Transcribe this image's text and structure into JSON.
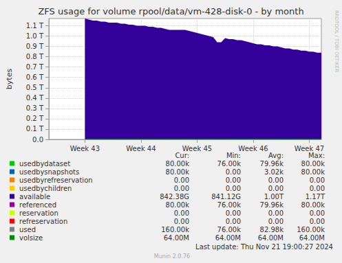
{
  "chart_data": {
    "type": "area",
    "title": "ZFS usage for volume rpool/data/vm-428-disk-0 - by month",
    "y_label": "bytes",
    "watermark": "RRDTOOL / TOBI OETIKER",
    "last_update": "Last update: Thu Nov 21 19:00:27 2024",
    "footer": "Munin 2.0.76",
    "grid": true,
    "ylim": [
      0,
      1.17
    ],
    "yticks": [
      {
        "value": 0,
        "label": "0.0"
      },
      {
        "value": 0.1,
        "label": "0.1 T"
      },
      {
        "value": 0.2,
        "label": "0.2 T"
      },
      {
        "value": 0.3,
        "label": "0.3 T"
      },
      {
        "value": 0.4,
        "label": "0.4 T"
      },
      {
        "value": 0.5,
        "label": "0.5 T"
      },
      {
        "value": 0.6,
        "label": "0.6 T"
      },
      {
        "value": 0.7,
        "label": "0.7 T"
      },
      {
        "value": 0.8,
        "label": "0.8 T"
      },
      {
        "value": 0.9,
        "label": "0.9 T"
      },
      {
        "value": 1.0,
        "label": "1.0 T"
      },
      {
        "value": 1.1,
        "label": "1.1 T"
      }
    ],
    "categories": [
      null,
      null,
      null,
      null,
      null,
      null,
      null,
      null,
      null,
      "Week 43",
      null,
      null,
      null,
      null,
      null,
      null,
      null,
      null,
      null,
      null,
      null,
      null,
      null,
      "Week 44",
      null,
      null,
      null,
      null,
      null,
      null,
      null,
      null,
      null,
      null,
      null,
      null,
      null,
      "Week 45",
      null,
      null,
      null,
      null,
      null,
      null,
      null,
      null,
      null,
      null,
      null,
      null,
      null,
      "Week 46",
      null,
      null,
      null,
      null,
      null,
      null,
      null,
      null,
      null,
      null,
      null,
      null,
      null,
      "Week 47",
      null,
      null,
      null
    ],
    "series": [
      {
        "name": "available",
        "type": "area",
        "values": [
          null,
          null,
          null,
          null,
          null,
          null,
          null,
          null,
          null,
          1.17,
          1.16,
          1.15,
          1.15,
          1.14,
          1.14,
          1.13,
          1.13,
          1.13,
          1.12,
          1.12,
          1.11,
          1.11,
          1.1,
          1.1,
          1.1,
          1.09,
          1.09,
          1.08,
          1.08,
          1.07,
          1.06,
          1.06,
          1.06,
          1.06,
          1.06,
          1.05,
          1.04,
          1.03,
          1.02,
          1.01,
          1.0,
          0.99,
          0.94,
          0.94,
          0.98,
          0.97,
          0.97,
          0.96,
          0.96,
          0.95,
          0.94,
          0.93,
          0.92,
          0.92,
          0.91,
          0.91,
          0.9,
          0.9,
          0.89,
          0.88,
          0.88,
          0.87,
          0.87,
          0.86,
          0.86,
          0.85,
          0.85,
          0.84,
          0.84
        ]
      },
      {
        "name": "usedbydataset",
        "type": "line",
        "values": [
          null,
          null,
          null,
          null,
          null,
          null,
          null,
          null,
          null,
          8e-08,
          8e-08,
          8e-08,
          8e-08,
          8e-08,
          8e-08,
          8e-08,
          8e-08,
          8e-08,
          8e-08,
          8e-08,
          8e-08,
          8e-08,
          8e-08,
          8e-08,
          8e-08,
          8e-08,
          8e-08,
          8e-08,
          8e-08,
          8e-08,
          8e-08,
          8e-08,
          8e-08,
          8e-08,
          8e-08,
          8e-08,
          8e-08,
          8e-08,
          8e-08,
          8e-08,
          8e-08,
          8e-08,
          8e-08,
          8e-08,
          8e-08,
          8e-08,
          8e-08,
          8e-08,
          8e-08,
          8e-08,
          8e-08,
          8e-08,
          8e-08,
          8e-08,
          8e-08,
          8e-08,
          8e-08,
          8e-08,
          8e-08,
          8e-08,
          8e-08,
          8e-08,
          8e-08,
          8e-08,
          8e-08,
          8e-08,
          8e-08,
          8e-08,
          8e-08
        ]
      }
    ],
    "legend_table": {
      "columns": [
        "Cur:",
        "Min:",
        "Avg:",
        "Max:"
      ],
      "rows": [
        {
          "name": "usedbydataset",
          "color": "#00CC00",
          "cur": "80.00k",
          "min": "76.00k",
          "avg": "79.96k",
          "max": "80.00k"
        },
        {
          "name": "usedbysnapshots",
          "color": "#0066B3",
          "cur": "80.00k",
          "min": "0.00",
          "avg": "3.02k",
          "max": "80.00k"
        },
        {
          "name": "usedbyrefreservation",
          "color": "#FF8000",
          "cur": "0.00",
          "min": "0.00",
          "avg": "0.00",
          "max": "0.00"
        },
        {
          "name": "usedbychildren",
          "color": "#FFCC00",
          "cur": "0.00",
          "min": "0.00",
          "avg": "0.00",
          "max": "0.00"
        },
        {
          "name": "available",
          "color": "#330099",
          "cur": "842.38G",
          "min": "841.12G",
          "avg": "1.00T",
          "max": "1.17T"
        },
        {
          "name": "referenced",
          "color": "#990099",
          "cur": "80.00k",
          "min": "76.00k",
          "avg": "79.96k",
          "max": "80.00k"
        },
        {
          "name": "reservation",
          "color": "#CCFF00",
          "cur": "0.00",
          "min": "0.00",
          "avg": "0.00",
          "max": "0.00"
        },
        {
          "name": "refreservation",
          "color": "#FF0000",
          "cur": "0.00",
          "min": "0.00",
          "avg": "0.00",
          "max": "0.00"
        },
        {
          "name": "used",
          "color": "#808080",
          "cur": "160.00k",
          "min": "76.00k",
          "avg": "82.98k",
          "max": "160.00k"
        },
        {
          "name": "volsize",
          "color": "#008F00",
          "cur": "64.00M",
          "min": "64.00M",
          "avg": "64.00M",
          "max": "64.00M"
        }
      ]
    }
  }
}
